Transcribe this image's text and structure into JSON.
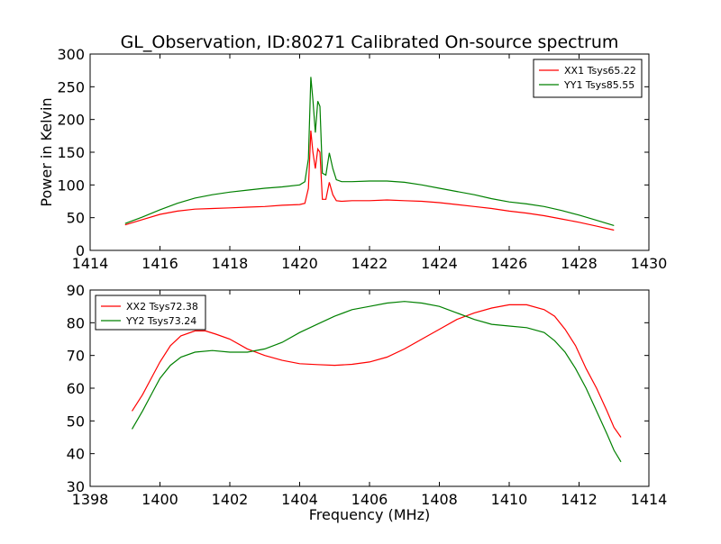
{
  "title": "GL_Observation, ID:80271 Calibrated On-source spectrum",
  "chart_data": [
    {
      "type": "line",
      "ylabel": "Power in Kelvin",
      "xlabel": "",
      "xlim": [
        1414,
        1430
      ],
      "ylim": [
        0,
        300
      ],
      "xticks": [
        1414,
        1416,
        1418,
        1420,
        1422,
        1424,
        1426,
        1428,
        1430
      ],
      "yticks": [
        0,
        50,
        100,
        150,
        200,
        250,
        300
      ],
      "grid": false,
      "legend": "top-right",
      "series": [
        {
          "name": "XX1 Tsys65.22",
          "color": "#ff0000",
          "x": [
            1415.0,
            1415.5,
            1416.0,
            1416.5,
            1417.0,
            1417.5,
            1418.0,
            1418.5,
            1419.0,
            1419.5,
            1420.0,
            1420.15,
            1420.25,
            1420.32,
            1420.38,
            1420.45,
            1420.52,
            1420.58,
            1420.65,
            1420.75,
            1420.85,
            1420.95,
            1421.05,
            1421.2,
            1421.5,
            1422.0,
            1422.5,
            1423.0,
            1423.5,
            1424.0,
            1424.5,
            1425.0,
            1425.5,
            1426.0,
            1426.5,
            1427.0,
            1427.5,
            1428.0,
            1428.5,
            1429.0
          ],
          "y": [
            39,
            47,
            55,
            60,
            63,
            64,
            65,
            66,
            67,
            69,
            70,
            72,
            95,
            183,
            150,
            125,
            155,
            150,
            78,
            78,
            104,
            85,
            76,
            75,
            76,
            76,
            77,
            76,
            75,
            73,
            70,
            67,
            64,
            60,
            57,
            53,
            48,
            43,
            37,
            31
          ]
        },
        {
          "name": "YY1 Tsys85.55",
          "color": "#008000",
          "x": [
            1415.0,
            1415.5,
            1416.0,
            1416.5,
            1417.0,
            1417.5,
            1418.0,
            1418.5,
            1419.0,
            1419.5,
            1420.0,
            1420.15,
            1420.25,
            1420.32,
            1420.38,
            1420.45,
            1420.52,
            1420.58,
            1420.65,
            1420.75,
            1420.85,
            1420.95,
            1421.05,
            1421.2,
            1421.5,
            1422.0,
            1422.5,
            1423.0,
            1423.5,
            1424.0,
            1424.5,
            1425.0,
            1425.5,
            1426.0,
            1426.5,
            1427.0,
            1427.5,
            1428.0,
            1428.5,
            1429.0
          ],
          "y": [
            41,
            51,
            62,
            72,
            80,
            85,
            89,
            92,
            95,
            97,
            100,
            105,
            140,
            265,
            230,
            180,
            228,
            220,
            118,
            115,
            149,
            125,
            108,
            105,
            105,
            106,
            106,
            104,
            100,
            95,
            90,
            85,
            79,
            74,
            71,
            67,
            61,
            54,
            46,
            38
          ]
        }
      ]
    },
    {
      "type": "line",
      "ylabel": "",
      "xlabel": "Frequency (MHz)",
      "xlim": [
        1398,
        1414
      ],
      "ylim": [
        30,
        90
      ],
      "xticks": [
        1398,
        1400,
        1402,
        1404,
        1406,
        1408,
        1410,
        1412,
        1414
      ],
      "yticks": [
        30,
        40,
        50,
        60,
        70,
        80,
        90
      ],
      "grid": false,
      "legend": "top-left",
      "series": [
        {
          "name": "XX2 Tsys72.38",
          "color": "#ff0000",
          "x": [
            1399.2,
            1399.5,
            1399.8,
            1400.0,
            1400.3,
            1400.6,
            1401.0,
            1401.3,
            1401.6,
            1402.0,
            1402.5,
            1403.0,
            1403.5,
            1404.0,
            1404.5,
            1405.0,
            1405.5,
            1406.0,
            1406.5,
            1407.0,
            1407.5,
            1408.0,
            1408.5,
            1409.0,
            1409.5,
            1410.0,
            1410.5,
            1411.0,
            1411.3,
            1411.6,
            1411.9,
            1412.2,
            1412.5,
            1412.8,
            1413.0,
            1413.2
          ],
          "y": [
            53,
            58,
            64,
            68,
            73,
            76,
            77.5,
            77.5,
            76.5,
            75,
            72,
            70,
            68.5,
            67.5,
            67.2,
            67,
            67.3,
            68,
            69.5,
            72,
            75,
            78,
            81,
            83,
            84.5,
            85.5,
            85.5,
            84,
            82,
            78,
            73,
            66,
            60,
            53,
            48,
            45
          ]
        },
        {
          "name": "YY2 Tsys73.24",
          "color": "#008000",
          "x": [
            1399.2,
            1399.5,
            1399.8,
            1400.0,
            1400.3,
            1400.6,
            1401.0,
            1401.5,
            1402.0,
            1402.5,
            1403.0,
            1403.5,
            1404.0,
            1404.5,
            1405.0,
            1405.5,
            1406.0,
            1406.5,
            1407.0,
            1407.5,
            1408.0,
            1408.5,
            1409.0,
            1409.5,
            1410.0,
            1410.5,
            1411.0,
            1411.3,
            1411.6,
            1411.9,
            1412.2,
            1412.5,
            1412.8,
            1413.0,
            1413.2
          ],
          "y": [
            47.5,
            53,
            59,
            63,
            67,
            69.5,
            71,
            71.5,
            71,
            71,
            72,
            74,
            77,
            79.5,
            82,
            84,
            85,
            86,
            86.5,
            86,
            85,
            83,
            81,
            79.5,
            79,
            78.5,
            77,
            74.5,
            71,
            66,
            60,
            53,
            46,
            41,
            37.5
          ]
        }
      ]
    }
  ]
}
